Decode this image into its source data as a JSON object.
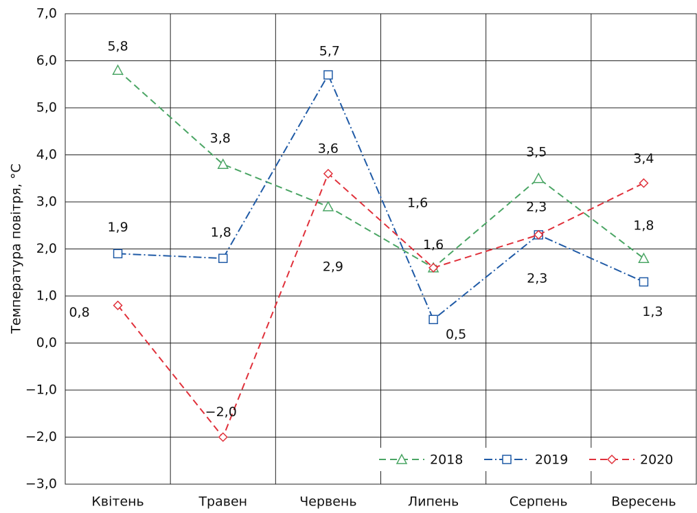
{
  "chart_data": {
    "type": "line",
    "y_label": "Температура повітря, °С",
    "categories": [
      "Квітень",
      "Травен",
      "Червень",
      "Липень",
      "Серпень",
      "Вересень"
    ],
    "series": [
      {
        "name": "2018",
        "color": "#4aa564",
        "marker": "triangle",
        "values": [
          5.8,
          3.8,
          2.9,
          1.6,
          3.5,
          1.8
        ],
        "value_labels": [
          "5,8",
          "3,8",
          "2,9",
          "1,6",
          "3,5",
          "1,8"
        ]
      },
      {
        "name": "2019",
        "color": "#1f5aa6",
        "marker": "square",
        "values": [
          1.9,
          1.8,
          5.7,
          0.5,
          2.3,
          1.3
        ],
        "value_labels": [
          "1,9",
          "1,8",
          "5,7",
          "0,5",
          "2,3",
          "1,3"
        ]
      },
      {
        "name": "2020",
        "color": "#e0303a",
        "marker": "diamond",
        "values": [
          0.8,
          -2.0,
          3.6,
          1.6,
          2.3,
          3.4
        ],
        "value_labels": [
          "0,8",
          "−2,0",
          "3,6",
          "1,6",
          "2,3",
          "3,4"
        ]
      }
    ],
    "ylim": [
      -3,
      7
    ],
    "yticks": [
      {
        "value": -3,
        "label": "−3,0"
      },
      {
        "value": -2,
        "label": "−2,0"
      },
      {
        "value": -1,
        "label": "−1,0"
      },
      {
        "value": 0,
        "label": "0,0"
      },
      {
        "value": 1,
        "label": "1,0"
      },
      {
        "value": 2,
        "label": "2,0"
      },
      {
        "value": 3,
        "label": "3,0"
      },
      {
        "value": 4,
        "label": "4,0"
      },
      {
        "value": 5,
        "label": "5,0"
      },
      {
        "value": 6,
        "label": "6,0"
      },
      {
        "value": 7,
        "label": "7,0"
      }
    ],
    "grid": true,
    "legend": "lower right"
  }
}
